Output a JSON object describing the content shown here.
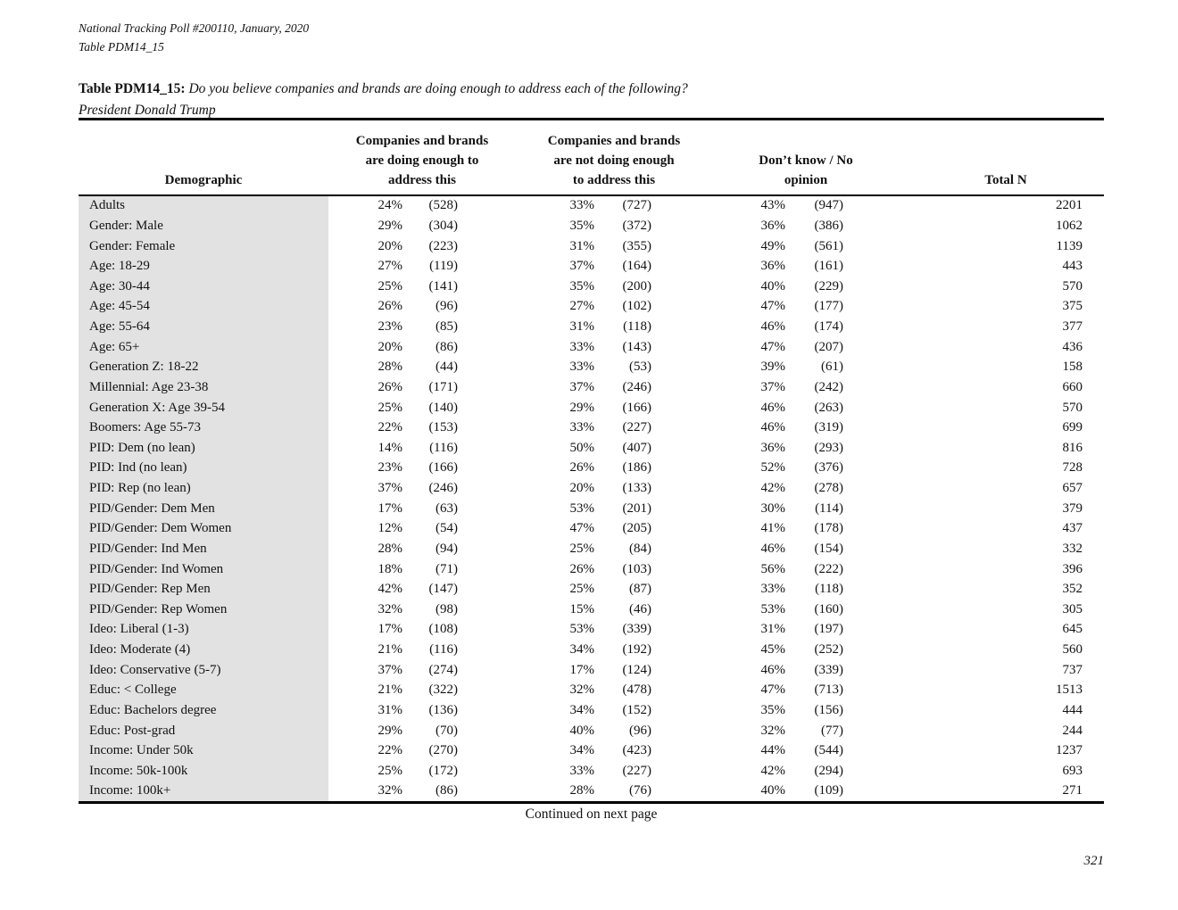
{
  "page_header": {
    "line1": "National Tracking Poll #200110, January, 2020",
    "line2": "Table PDM14_15"
  },
  "title": {
    "label": "Table PDM14_15:",
    "question": "Do you believe companies and brands are doing enough to address each of the following?",
    "subject": "President Donald Trump"
  },
  "table": {
    "headers": {
      "demographic": "Demographic",
      "col1": "Companies and brands\nare doing enough to\naddress this",
      "col2": "Companies and brands\nare not doing enough\nto address this",
      "col3": "Don’t know / No\nopinion",
      "total": "Total N"
    },
    "rows": [
      {
        "demographic": "Adults",
        "c1_pct": "24%",
        "c1_n": "(528)",
        "c2_pct": "33%",
        "c2_n": "(727)",
        "c3_pct": "43%",
        "c3_n": "(947)",
        "total": "2201"
      },
      {
        "demographic": "Gender: Male",
        "c1_pct": "29%",
        "c1_n": "(304)",
        "c2_pct": "35%",
        "c2_n": "(372)",
        "c3_pct": "36%",
        "c3_n": "(386)",
        "total": "1062"
      },
      {
        "demographic": "Gender: Female",
        "c1_pct": "20%",
        "c1_n": "(223)",
        "c2_pct": "31%",
        "c2_n": "(355)",
        "c3_pct": "49%",
        "c3_n": "(561)",
        "total": "1139"
      },
      {
        "demographic": "Age: 18-29",
        "c1_pct": "27%",
        "c1_n": "(119)",
        "c2_pct": "37%",
        "c2_n": "(164)",
        "c3_pct": "36%",
        "c3_n": "(161)",
        "total": "443"
      },
      {
        "demographic": "Age: 30-44",
        "c1_pct": "25%",
        "c1_n": "(141)",
        "c2_pct": "35%",
        "c2_n": "(200)",
        "c3_pct": "40%",
        "c3_n": "(229)",
        "total": "570"
      },
      {
        "demographic": "Age: 45-54",
        "c1_pct": "26%",
        "c1_n": "(96)",
        "c2_pct": "27%",
        "c2_n": "(102)",
        "c3_pct": "47%",
        "c3_n": "(177)",
        "total": "375"
      },
      {
        "demographic": "Age: 55-64",
        "c1_pct": "23%",
        "c1_n": "(85)",
        "c2_pct": "31%",
        "c2_n": "(118)",
        "c3_pct": "46%",
        "c3_n": "(174)",
        "total": "377"
      },
      {
        "demographic": "Age: 65+",
        "c1_pct": "20%",
        "c1_n": "(86)",
        "c2_pct": "33%",
        "c2_n": "(143)",
        "c3_pct": "47%",
        "c3_n": "(207)",
        "total": "436"
      },
      {
        "demographic": "Generation Z: 18-22",
        "c1_pct": "28%",
        "c1_n": "(44)",
        "c2_pct": "33%",
        "c2_n": "(53)",
        "c3_pct": "39%",
        "c3_n": "(61)",
        "total": "158"
      },
      {
        "demographic": "Millennial: Age 23-38",
        "c1_pct": "26%",
        "c1_n": "(171)",
        "c2_pct": "37%",
        "c2_n": "(246)",
        "c3_pct": "37%",
        "c3_n": "(242)",
        "total": "660"
      },
      {
        "demographic": "Generation X: Age 39-54",
        "c1_pct": "25%",
        "c1_n": "(140)",
        "c2_pct": "29%",
        "c2_n": "(166)",
        "c3_pct": "46%",
        "c3_n": "(263)",
        "total": "570"
      },
      {
        "demographic": "Boomers: Age 55-73",
        "c1_pct": "22%",
        "c1_n": "(153)",
        "c2_pct": "33%",
        "c2_n": "(227)",
        "c3_pct": "46%",
        "c3_n": "(319)",
        "total": "699"
      },
      {
        "demographic": "PID: Dem (no lean)",
        "c1_pct": "14%",
        "c1_n": "(116)",
        "c2_pct": "50%",
        "c2_n": "(407)",
        "c3_pct": "36%",
        "c3_n": "(293)",
        "total": "816"
      },
      {
        "demographic": "PID: Ind (no lean)",
        "c1_pct": "23%",
        "c1_n": "(166)",
        "c2_pct": "26%",
        "c2_n": "(186)",
        "c3_pct": "52%",
        "c3_n": "(376)",
        "total": "728"
      },
      {
        "demographic": "PID: Rep (no lean)",
        "c1_pct": "37%",
        "c1_n": "(246)",
        "c2_pct": "20%",
        "c2_n": "(133)",
        "c3_pct": "42%",
        "c3_n": "(278)",
        "total": "657"
      },
      {
        "demographic": "PID/Gender: Dem Men",
        "c1_pct": "17%",
        "c1_n": "(63)",
        "c2_pct": "53%",
        "c2_n": "(201)",
        "c3_pct": "30%",
        "c3_n": "(114)",
        "total": "379"
      },
      {
        "demographic": "PID/Gender: Dem Women",
        "c1_pct": "12%",
        "c1_n": "(54)",
        "c2_pct": "47%",
        "c2_n": "(205)",
        "c3_pct": "41%",
        "c3_n": "(178)",
        "total": "437"
      },
      {
        "demographic": "PID/Gender: Ind Men",
        "c1_pct": "28%",
        "c1_n": "(94)",
        "c2_pct": "25%",
        "c2_n": "(84)",
        "c3_pct": "46%",
        "c3_n": "(154)",
        "total": "332"
      },
      {
        "demographic": "PID/Gender: Ind Women",
        "c1_pct": "18%",
        "c1_n": "(71)",
        "c2_pct": "26%",
        "c2_n": "(103)",
        "c3_pct": "56%",
        "c3_n": "(222)",
        "total": "396"
      },
      {
        "demographic": "PID/Gender: Rep Men",
        "c1_pct": "42%",
        "c1_n": "(147)",
        "c2_pct": "25%",
        "c2_n": "(87)",
        "c3_pct": "33%",
        "c3_n": "(118)",
        "total": "352"
      },
      {
        "demographic": "PID/Gender: Rep Women",
        "c1_pct": "32%",
        "c1_n": "(98)",
        "c2_pct": "15%",
        "c2_n": "(46)",
        "c3_pct": "53%",
        "c3_n": "(160)",
        "total": "305"
      },
      {
        "demographic": "Ideo: Liberal (1-3)",
        "c1_pct": "17%",
        "c1_n": "(108)",
        "c2_pct": "53%",
        "c2_n": "(339)",
        "c3_pct": "31%",
        "c3_n": "(197)",
        "total": "645"
      },
      {
        "demographic": "Ideo: Moderate (4)",
        "c1_pct": "21%",
        "c1_n": "(116)",
        "c2_pct": "34%",
        "c2_n": "(192)",
        "c3_pct": "45%",
        "c3_n": "(252)",
        "total": "560"
      },
      {
        "demographic": "Ideo: Conservative (5-7)",
        "c1_pct": "37%",
        "c1_n": "(274)",
        "c2_pct": "17%",
        "c2_n": "(124)",
        "c3_pct": "46%",
        "c3_n": "(339)",
        "total": "737"
      },
      {
        "demographic": "Educ: < College",
        "c1_pct": "21%",
        "c1_n": "(322)",
        "c2_pct": "32%",
        "c2_n": "(478)",
        "c3_pct": "47%",
        "c3_n": "(713)",
        "total": "1513"
      },
      {
        "demographic": "Educ: Bachelors degree",
        "c1_pct": "31%",
        "c1_n": "(136)",
        "c2_pct": "34%",
        "c2_n": "(152)",
        "c3_pct": "35%",
        "c3_n": "(156)",
        "total": "444"
      },
      {
        "demographic": "Educ: Post-grad",
        "c1_pct": "29%",
        "c1_n": "(70)",
        "c2_pct": "40%",
        "c2_n": "(96)",
        "c3_pct": "32%",
        "c3_n": "(77)",
        "total": "244"
      },
      {
        "demographic": "Income: Under 50k",
        "c1_pct": "22%",
        "c1_n": "(270)",
        "c2_pct": "34%",
        "c2_n": "(423)",
        "c3_pct": "44%",
        "c3_n": "(544)",
        "total": "1237"
      },
      {
        "demographic": "Income: 50k-100k",
        "c1_pct": "25%",
        "c1_n": "(172)",
        "c2_pct": "33%",
        "c2_n": "(227)",
        "c3_pct": "42%",
        "c3_n": "(294)",
        "total": "693"
      },
      {
        "demographic": "Income: 100k+",
        "c1_pct": "32%",
        "c1_n": "(86)",
        "c2_pct": "28%",
        "c2_n": "(76)",
        "c3_pct": "40%",
        "c3_n": "(109)",
        "total": "271"
      }
    ]
  },
  "footer": {
    "continued": "Continued on next page",
    "page_number": "321"
  }
}
